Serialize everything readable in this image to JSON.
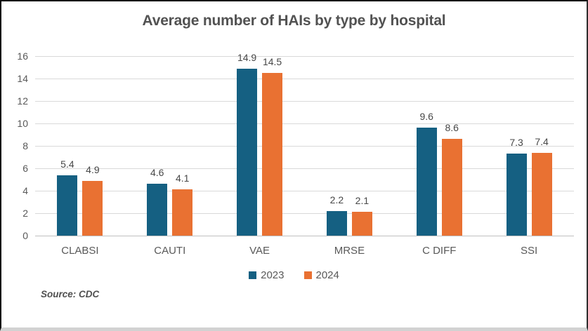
{
  "chart_data": {
    "type": "bar",
    "title": "Average number of HAIs by type by hospital",
    "categories": [
      "CLABSI",
      "CAUTI",
      "VAE",
      "MRSE",
      "C DIFF",
      "SSI"
    ],
    "series": [
      {
        "name": "2023",
        "color": "#156082",
        "values": [
          5.4,
          4.6,
          14.9,
          2.2,
          9.6,
          7.3
        ]
      },
      {
        "name": "2024",
        "color": "#E97132",
        "values": [
          4.9,
          4.1,
          14.5,
          2.1,
          8.6,
          7.4
        ]
      }
    ],
    "ylim": [
      0,
      16
    ],
    "ytick_step": 2,
    "yticks": [
      0,
      2,
      4,
      6,
      8,
      10,
      12,
      14,
      16
    ],
    "grid": "horizontal",
    "legend_position": "bottom",
    "data_labels": true
  },
  "source_note": "Source: CDC",
  "colors": {
    "series_2023": "#156082",
    "series_2024": "#E97132",
    "gridline": "#d9d9d9",
    "axis_line": "#c0c0c0",
    "text": "#595959",
    "title_text": "#525252"
  }
}
